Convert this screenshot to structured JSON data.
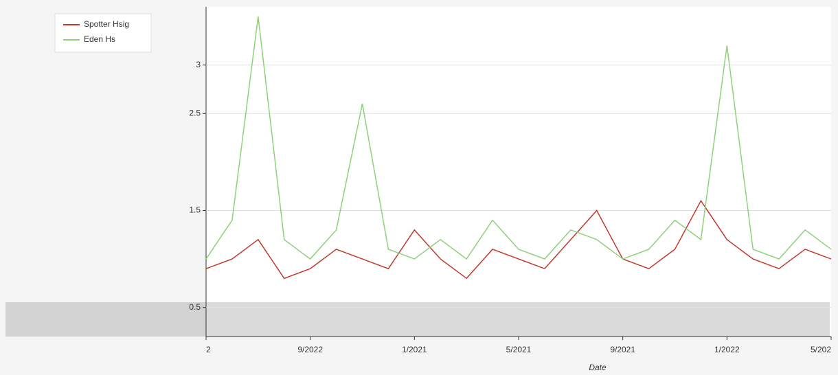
{
  "chart_data": {
    "type": "line",
    "x_label": "Date",
    "categories": [
      "2",
      null,
      null,
      null,
      "9/2022",
      null,
      null,
      null,
      "1/2021",
      null,
      null,
      null,
      "5/2021",
      null,
      null,
      null,
      "9/2021",
      null,
      null,
      null,
      "1/2022",
      null,
      null,
      null,
      "5/202"
    ],
    "series": [
      {
        "name": "Spotter Hsig",
        "color": "#c0392b",
        "values": [
          0.9,
          1.0,
          1.2,
          0.8,
          0.9,
          1.1,
          1.0,
          0.9,
          1.3,
          1.0,
          0.8,
          1.1,
          1.0,
          0.9,
          1.2,
          1.5,
          1.0,
          0.9,
          1.1,
          1.6,
          1.2,
          1.0,
          0.9,
          1.1,
          1.0
        ]
      },
      {
        "name": "Eden Hs",
        "color": "#8fd07a",
        "values": [
          1.0,
          1.4,
          3.5,
          1.2,
          1.0,
          1.3,
          2.6,
          1.1,
          1.0,
          1.2,
          1.0,
          1.4,
          1.1,
          1.0,
          1.3,
          1.2,
          1.0,
          1.1,
          1.4,
          1.2,
          3.2,
          1.1,
          1.0,
          1.3,
          1.1
        ]
      }
    ],
    "ylim": [
      0.2,
      3.6
    ],
    "yticks": [
      0.5,
      1.5,
      2.5,
      3
    ],
    "grid": true,
    "legend": "top-left"
  }
}
